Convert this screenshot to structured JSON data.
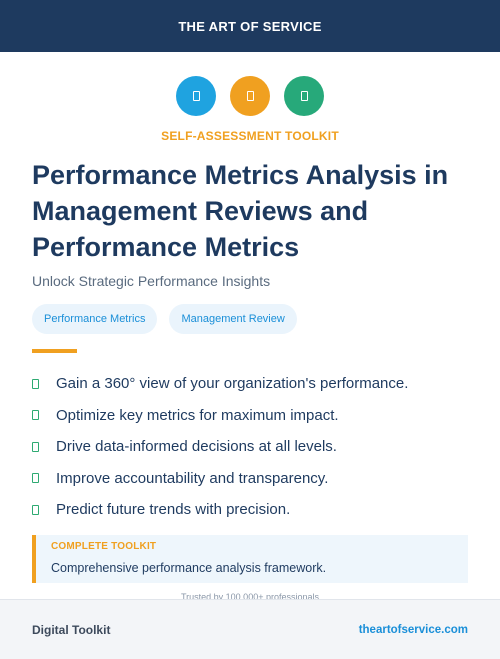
{
  "header": {
    "brand": "THE ART OF SERVICE"
  },
  "icons": [
    {
      "name": "document-icon",
      "color": "#1fa3e0"
    },
    {
      "name": "document-icon",
      "color": "#f0a020"
    },
    {
      "name": "document-icon",
      "color": "#27a97a"
    }
  ],
  "eyebrow": "SELF-ASSESSMENT TOOLKIT",
  "title": "Performance Metrics Analysis in Management Reviews and Performance Metrics",
  "subtitle": "Unlock Strategic Performance Insights",
  "tags": [
    "Performance Metrics",
    "Management Review"
  ],
  "benefits": [
    "Gain a 360° view of your organization's performance.",
    "Optimize key metrics for maximum impact.",
    "Drive data-informed decisions at all levels.",
    "Improve accountability and transparency.",
    "Predict future trends with precision."
  ],
  "callout": {
    "label": "COMPLETE TOOLKIT",
    "text": "Comprehensive performance analysis framework."
  },
  "trusted": "Trusted by 100,000+ professionals",
  "footer": {
    "left": "Digital Toolkit",
    "right": "theartofservice.com"
  },
  "colors": {
    "navy": "#1e3a5f",
    "orange": "#f0a020",
    "blue": "#1a8fd8",
    "green": "#2eaa72"
  }
}
